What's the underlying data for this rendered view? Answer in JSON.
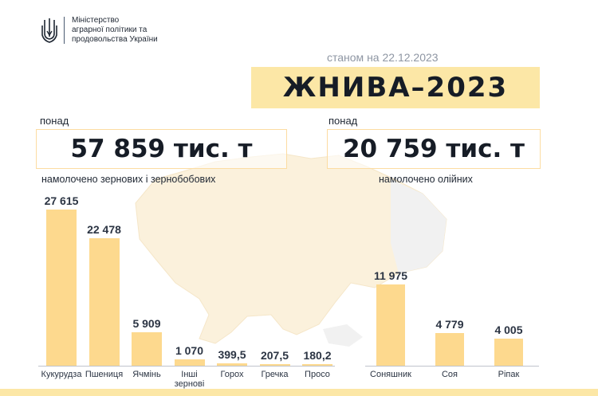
{
  "header": {
    "ministry_line1": "Міністерство",
    "ministry_line2": "аграрної політики та",
    "ministry_line3": "продовольства України"
  },
  "as_of": "станом на 22.12.2023",
  "title": "ЖНИВА–2023",
  "grain": {
    "prefix": "понад",
    "total": "57 859 тис. т",
    "caption": "намолочено зернових і зернобобових"
  },
  "oilseed": {
    "prefix": "понад",
    "total": "20 759 тис. т",
    "caption": "намолочено олійних"
  },
  "colors": {
    "bar": "#fdd98e",
    "title_bg": "#fce7a6",
    "box_border": "#fcdca2"
  },
  "chart_data": [
    {
      "type": "bar",
      "title": "",
      "categories": [
        "Кукурудза",
        "Пшениця",
        "Ячмінь",
        "Інші\nзернові",
        "Горох",
        "Гречка",
        "Просо"
      ],
      "values": [
        27615,
        22478,
        5909,
        1070,
        399.5,
        207.5,
        180.2
      ],
      "value_labels": [
        "27 615",
        "22 478",
        "5 909",
        "1 070",
        "399,5",
        "207,5",
        "180,2"
      ],
      "xlabel": "",
      "ylabel": ""
    },
    {
      "type": "bar",
      "title": "",
      "categories": [
        "Соняшник",
        "Соя",
        "Ріпак"
      ],
      "values": [
        11975,
        4779,
        4005
      ],
      "value_labels": [
        "11 975",
        "4 779",
        "4 005"
      ],
      "xlabel": "",
      "ylabel": ""
    }
  ]
}
